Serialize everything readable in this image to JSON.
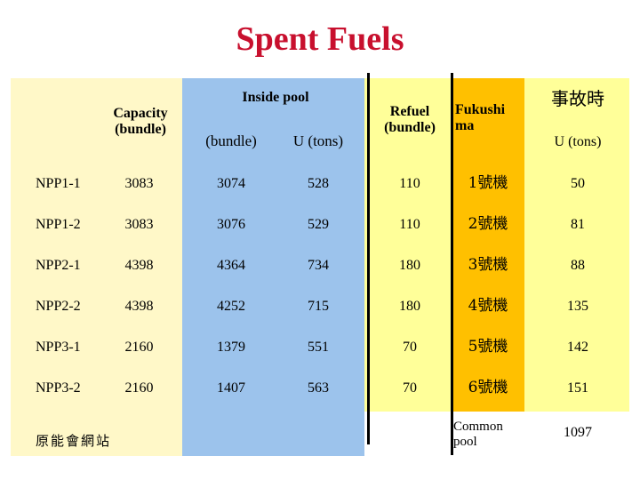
{
  "title": "Spent Fuels",
  "headers": {
    "capacity": "Capacity\n(bundle)",
    "inside_pool": "Inside pool",
    "inside_bundle": "(bundle)",
    "inside_u": "U (tons)",
    "refuel": "Refuel\n(bundle)",
    "fukushima": "Fukushi\nma",
    "accident": "事故時",
    "accident_u": "U (tons)"
  },
  "rows": [
    {
      "label": "NPP1-1",
      "capacity": "3083",
      "bundle": "3074",
      "u": "528",
      "refuel": "110",
      "fuku": "1號機",
      "acc": "50"
    },
    {
      "label": "NPP1-2",
      "capacity": "3083",
      "bundle": "3076",
      "u": "529",
      "refuel": "110",
      "fuku": "2號機",
      "acc": "81"
    },
    {
      "label": "NPP2-1",
      "capacity": "4398",
      "bundle": "4364",
      "u": "734",
      "refuel": "180",
      "fuku": "3號機",
      "acc": "88"
    },
    {
      "label": "NPP2-2",
      "capacity": "4398",
      "bundle": "4252",
      "u": "715",
      "refuel": "180",
      "fuku": "4號機",
      "acc": "135"
    },
    {
      "label": "NPP3-1",
      "capacity": "2160",
      "bundle": "1379",
      "u": "551",
      "refuel": "70",
      "fuku": "5號機",
      "acc": "142"
    },
    {
      "label": "NPP3-2",
      "capacity": "2160",
      "bundle": "1407",
      "u": "563",
      "refuel": "70",
      "fuku": "6號機",
      "acc": "151"
    }
  ],
  "common": {
    "label": "Common\npool",
    "value": "1097"
  },
  "source_note": "原能會網站",
  "colors": {
    "title": "#c8102e",
    "light_yellow": "#fff8c8",
    "blue": "#9cc3ec",
    "yellow": "#ffff99",
    "gold": "#ffc000"
  }
}
